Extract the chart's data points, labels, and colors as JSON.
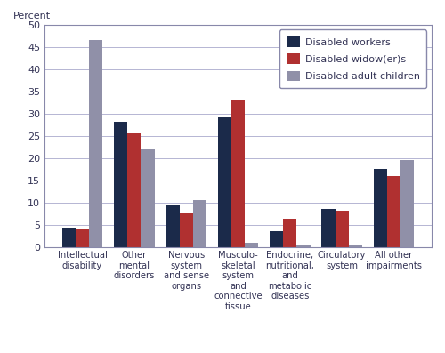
{
  "categories": [
    "Intellectual\ndisability",
    "Other\nmental\ndisorders",
    "Nervous\nsystem\nand sense\norgans",
    "Musculo-\nskeletal\nsystem\nand\nconnective\ntissue",
    "Endocrine,\nnutritional,\nand\nmetabolic\ndiseases",
    "Circulatory\nsystem",
    "All other\nimpairments"
  ],
  "disabled_workers": [
    4.4,
    28.1,
    9.5,
    29.2,
    3.6,
    8.6,
    17.5
  ],
  "disabled_widowers": [
    3.9,
    25.6,
    7.5,
    33.0,
    6.4,
    8.2,
    16.0
  ],
  "disabled_adult_children": [
    46.5,
    22.0,
    10.6,
    1.0,
    0.5,
    0.6,
    19.5
  ],
  "color_workers": "#1b2a4a",
  "color_widowers": "#b03030",
  "color_children": "#9090a8",
  "legend_labels": [
    "Disabled workers",
    "Disabled widow(er)s",
    "Disabled adult children"
  ],
  "percent_label": "Percent",
  "ylim": [
    0,
    50
  ],
  "yticks": [
    0,
    5,
    10,
    15,
    20,
    25,
    30,
    35,
    40,
    45,
    50
  ],
  "bar_width": 0.26,
  "figsize": [
    5.0,
    3.97
  ],
  "dpi": 100,
  "bg_color": "#ffffff",
  "spine_color": "#8888aa",
  "grid_color": "#aaaacc",
  "text_color": "#333355"
}
